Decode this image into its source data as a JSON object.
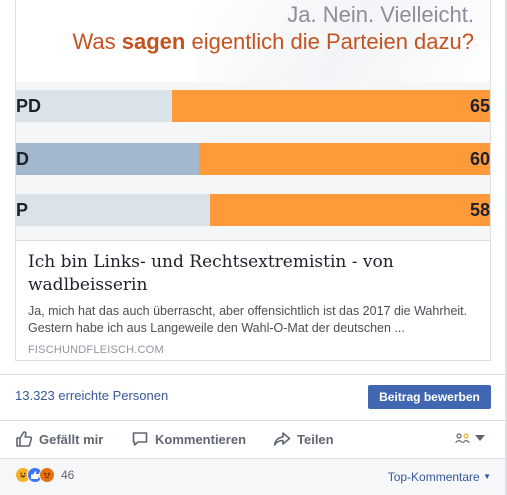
{
  "preview": {
    "headline_line1": "Ja. Nein. Vielleicht.",
    "headline_line2_before": "Was ",
    "headline_line2_bold": "sagen",
    "headline_line2_after": " eigentlich die Parteien dazu?",
    "bars": [
      {
        "abbr": "PD",
        "value": "65",
        "left_color": "#dbe3ea"
      },
      {
        "abbr": "D",
        "value": "60",
        "left_color": "#a3b8cc"
      },
      {
        "abbr": "P",
        "value": "58",
        "left_color": "#dbe3ea"
      }
    ],
    "title": "Ich bin Links- und Rechtsextremistin - von wadlbeisserin",
    "description": "Ja, mich hat das auch überrascht, aber offensichtlich ist das 2017 die Wahrheit. Gestern habe ich aus Langeweile den Wahl-O-Mat der deutschen ...",
    "domain": "FISCHUNDFLEISCH.COM"
  },
  "reach": {
    "text": "13.323 erreichte Personen",
    "boost_label": "Beitrag bewerben"
  },
  "actions": {
    "like_label": "Gefällt mir",
    "comment_label": "Kommentieren",
    "share_label": "Teilen"
  },
  "footer": {
    "reaction_count": "46",
    "sort_label": "Top-Kommentare"
  },
  "colors": {
    "accent": "#4267b2",
    "link": "#365899",
    "bar_orange": "#ff9a3b",
    "headline_orange": "#c4531f"
  },
  "icons": [
    "thumbs-up-icon",
    "comment-icon",
    "share-icon",
    "audience-icon",
    "chevron-down-icon",
    "haha-reaction-icon",
    "like-reaction-icon",
    "angry-reaction-icon"
  ]
}
